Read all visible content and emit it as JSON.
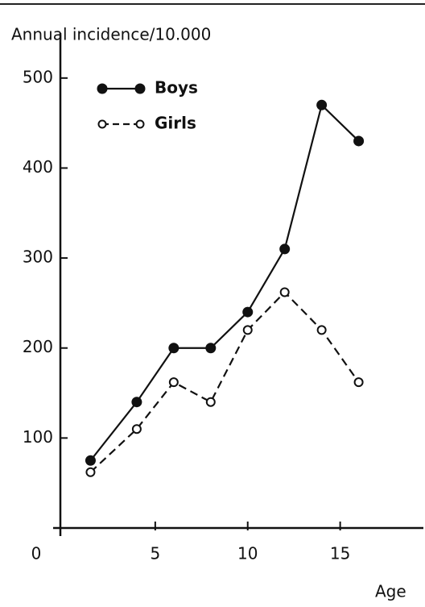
{
  "chart_data": {
    "type": "line",
    "y_label": "Annual incidence/10.000",
    "x_label": "Age",
    "x": [
      1.5,
      4,
      6,
      8,
      10,
      12,
      14,
      16
    ],
    "series": [
      {
        "name": "Boys",
        "color": "#111111",
        "marker": "filled",
        "dash": "solid",
        "values": [
          75,
          140,
          200,
          200,
          240,
          310,
          470,
          430
        ]
      },
      {
        "name": "Girls",
        "color": "#111111",
        "marker": "open",
        "dash": "dashed",
        "values": [
          62,
          110,
          162,
          140,
          220,
          262,
          220,
          162
        ]
      }
    ],
    "xlim": [
      0,
      19.5
    ],
    "xticks": [
      0,
      5,
      10,
      15
    ],
    "ylim": [
      0,
      550
    ],
    "yticks": [
      100,
      200,
      300,
      400,
      500
    ],
    "legend": "upper left",
    "grid": false
  }
}
